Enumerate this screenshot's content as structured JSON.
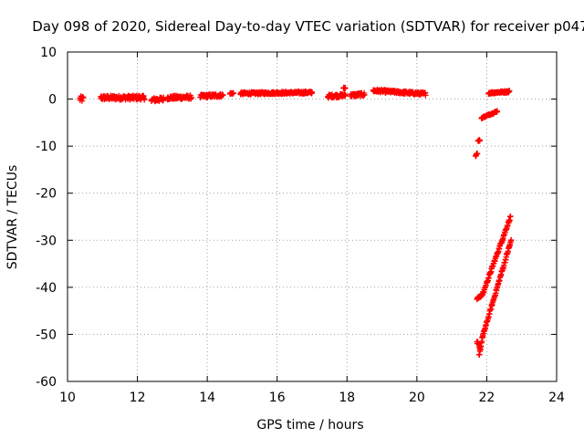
{
  "chart_data": {
    "type": "scatter",
    "title": "Day 098 of 2020, Sidereal Day-to-day VTEC variation (SDTVAR) for receiver p047",
    "xlabel": "GPS time / hours",
    "ylabel": "SDTVAR / TECUs",
    "xlim": [
      10,
      24
    ],
    "ylim": [
      -60,
      10
    ],
    "xticks": [
      10,
      12,
      14,
      16,
      18,
      20,
      22,
      24
    ],
    "yticks": [
      10,
      0,
      -10,
      -20,
      -30,
      -40,
      -50,
      -60
    ],
    "grid": true,
    "marker": "plus",
    "color": "#ff0000",
    "series": [
      {
        "segments": [
          {
            "x0": 10.35,
            "x1": 10.45,
            "y0": 0.0,
            "y1": 0.0,
            "spread": 1.2
          },
          {
            "x0": 10.95,
            "x1": 12.2,
            "y0": 0.3,
            "y1": 0.3,
            "spread": 0.9
          },
          {
            "x0": 12.4,
            "x1": 12.75,
            "y0": -0.2,
            "y1": 0.0,
            "spread": 0.9
          },
          {
            "x0": 12.85,
            "x1": 13.55,
            "y0": 0.3,
            "y1": 0.4,
            "spread": 0.8
          },
          {
            "x0": 13.8,
            "x1": 14.45,
            "y0": 0.6,
            "y1": 0.8,
            "spread": 0.7
          },
          {
            "x0": 14.65,
            "x1": 14.75,
            "y0": 1.2,
            "y1": 1.2,
            "spread": 0.3
          },
          {
            "x0": 14.95,
            "x1": 17.0,
            "y0": 1.2,
            "y1": 1.4,
            "spread": 0.5
          },
          {
            "x0": 17.45,
            "x1": 17.95,
            "y0": 0.6,
            "y1": 0.8,
            "spread": 0.7
          },
          {
            "x0": 17.9,
            "x1": 17.95,
            "y0": 2.4,
            "y1": 2.4,
            "spread": 0.3
          },
          {
            "x0": 18.1,
            "x1": 18.5,
            "y0": 0.8,
            "y1": 1.0,
            "spread": 0.7
          },
          {
            "x0": 18.75,
            "x1": 20.25,
            "y0": 1.8,
            "y1": 1.1,
            "spread": 0.6
          },
          {
            "x0": 22.05,
            "x1": 22.65,
            "y0": 1.3,
            "y1": 1.6,
            "spread": 0.4
          },
          {
            "x0": 21.85,
            "x1": 22.3,
            "y0": -4.0,
            "y1": -2.6,
            "spread": 0.3
          },
          {
            "x0": 21.75,
            "x1": 21.8,
            "y0": -8.8,
            "y1": -8.8,
            "spread": 0.3
          },
          {
            "x0": 21.68,
            "x1": 21.73,
            "y0": -12.0,
            "y1": -11.5,
            "spread": 0.3
          },
          {
            "x0": 21.72,
            "x1": 21.88,
            "y0": -42.5,
            "y1": -41.5,
            "spread": 0.5
          },
          {
            "x0": 21.88,
            "x1": 22.68,
            "y0": -41.5,
            "y1": -25.0,
            "spread": 0.6
          },
          {
            "x0": 21.72,
            "x1": 21.82,
            "y0": -51.5,
            "y1": -53.5,
            "spread": 0.8
          },
          {
            "x0": 21.78,
            "x1": 21.88,
            "y0": -54.5,
            "y1": -50.5,
            "spread": 0.5
          },
          {
            "x0": 21.88,
            "x1": 22.7,
            "y0": -50.5,
            "y1": -30.0,
            "spread": 0.6
          }
        ]
      }
    ]
  }
}
